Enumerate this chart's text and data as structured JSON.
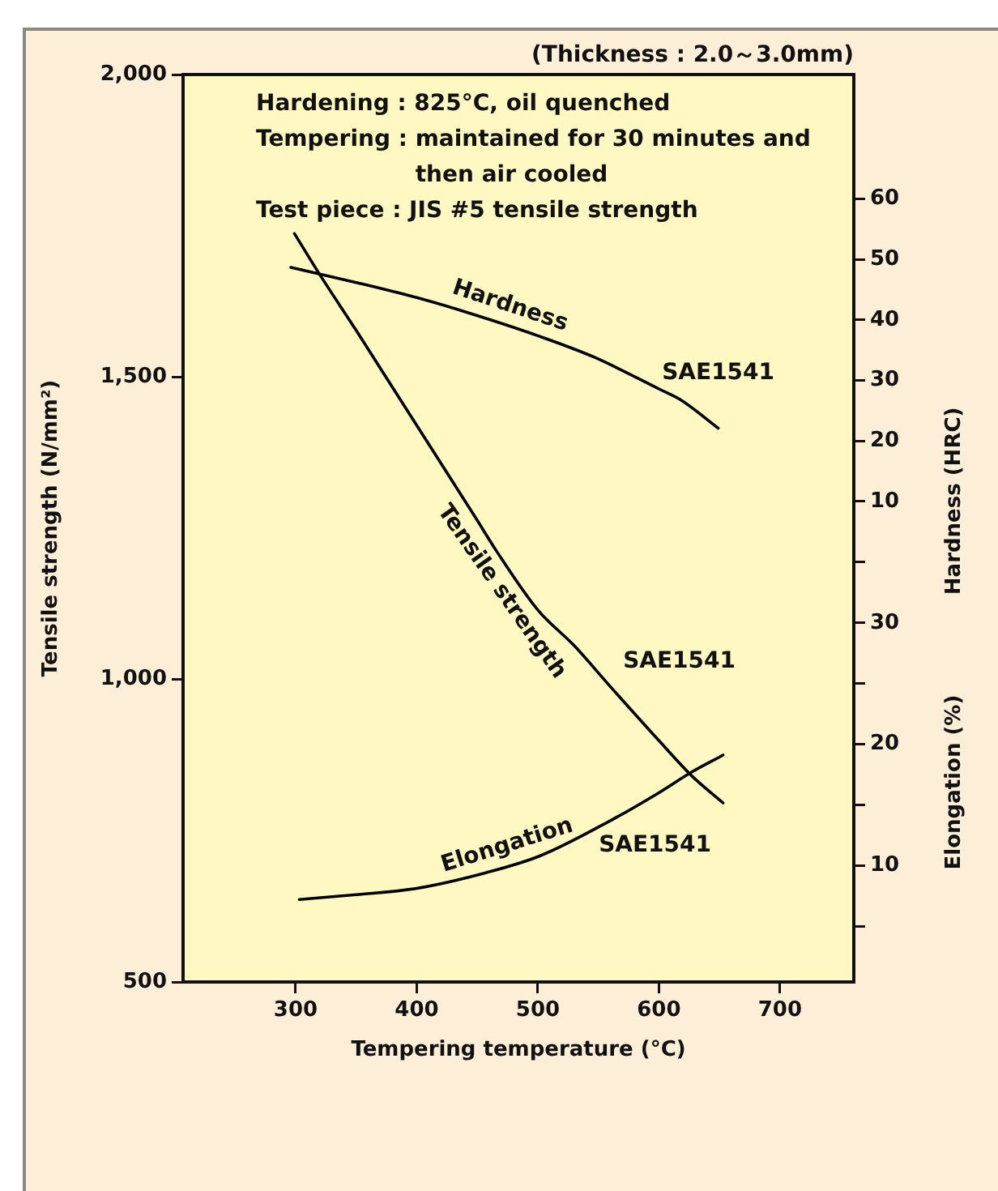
{
  "chart_data": {
    "type": "line",
    "xlabel": "Tempering temperature (°C)",
    "ylabel": "Tensile strength (N/mm²)",
    "y2label": "Hardness (HRC)",
    "y3label": "Elongation (%)",
    "xlim": [
      207,
      761
    ],
    "xticks": [
      300,
      400,
      500,
      600,
      700
    ],
    "ylim": [
      500,
      2000
    ],
    "yticks": [
      {
        "value": 500,
        "label": "500"
      },
      {
        "value": 1000,
        "label": "1,000"
      },
      {
        "value": 1500,
        "label": "1,500"
      },
      {
        "value": 2000,
        "label": "2,000"
      }
    ],
    "y2lim": [
      -69.5,
      80.6
    ],
    "y2ticks": [
      10,
      20,
      30,
      40,
      50,
      60
    ],
    "y3lim": [
      0.4,
      75.2
    ],
    "y3ticks": [
      {
        "value": 5,
        "label": null
      },
      10,
      {
        "value": 15,
        "label": null
      },
      20,
      {
        "value": 25,
        "label": null
      },
      30,
      {
        "value": 35,
        "label": null
      }
    ],
    "grid": false,
    "legend": false,
    "marker": "none",
    "line_style": "solid",
    "series": [
      {
        "name": "Tensile strength",
        "color": "#000000",
        "x": [
          299,
          320,
          350,
          400,
          450,
          466,
          500,
          530,
          560,
          600,
          627,
          653
        ],
        "values": [
          1737,
          1669,
          1577,
          1420,
          1263,
          1212,
          1115,
          1056,
          988,
          899,
          841,
          796
        ]
      },
      {
        "name": "Hardness",
        "color": "#000000",
        "axis": "y2",
        "x": [
          296,
          350,
          400,
          444,
          500,
          546,
          600,
          618,
          649
        ],
        "values": [
          48.7,
          46.2,
          43.7,
          41.1,
          37.4,
          33.9,
          28.6,
          26.8,
          22.1
        ]
      },
      {
        "name": "Elongation",
        "color": "#000000",
        "axis": "y3",
        "x": [
          303,
          350,
          399,
          457,
          502,
          560,
          600,
          627,
          653
        ],
        "values": [
          7.2,
          7.6,
          8.1,
          9.4,
          10.8,
          13.7,
          16.0,
          17.7,
          19.1
        ]
      }
    ],
    "annotations": [
      "(Thickness : 2.0～3.0mm)",
      "Hardening : 825°C, oil quenched",
      "Tempering : maintained for 30 minutes and then air cooled",
      "Test piece : JIS #5 tensile strength",
      "SAE1541",
      "SAE1541",
      "SAE1541"
    ]
  }
}
